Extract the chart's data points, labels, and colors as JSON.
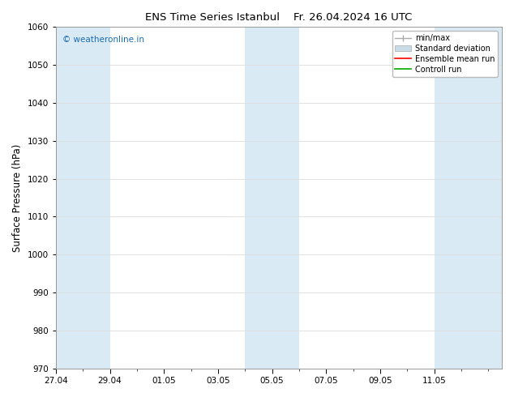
{
  "title_left": "ENS Time Series Istanbul",
  "title_right": "Fr. 26.04.2024 16 UTC",
  "ylabel": "Surface Pressure (hPa)",
  "ylim": [
    970,
    1060
  ],
  "yticks": [
    970,
    980,
    990,
    1000,
    1010,
    1020,
    1030,
    1040,
    1050,
    1060
  ],
  "xtick_labels": [
    "27.04",
    "29.04",
    "01.05",
    "03.05",
    "05.05",
    "07.05",
    "09.05",
    "11.05"
  ],
  "xtick_positions": [
    0,
    2,
    4,
    6,
    8,
    10,
    12,
    14
  ],
  "bg_color": "#ffffff",
  "plot_bg_color": "#ffffff",
  "band_color": "#daeaf5",
  "bands": [
    {
      "xmin": 0,
      "xmax": 2
    },
    {
      "xmin": 7,
      "xmax": 9
    },
    {
      "xmin": 14,
      "xmax": 16.5
    }
  ],
  "xmin": 0,
  "xmax": 16.5,
  "watermark": "© weatheronline.in",
  "watermark_color": "#1a6db5",
  "legend_minmax_color": "#aaaaaa",
  "legend_std_color": "#c8dce8",
  "legend_ens_color": "#ff0000",
  "legend_ctrl_color": "#00aa00",
  "grid_color": "#dddddd",
  "spine_color": "#999999"
}
